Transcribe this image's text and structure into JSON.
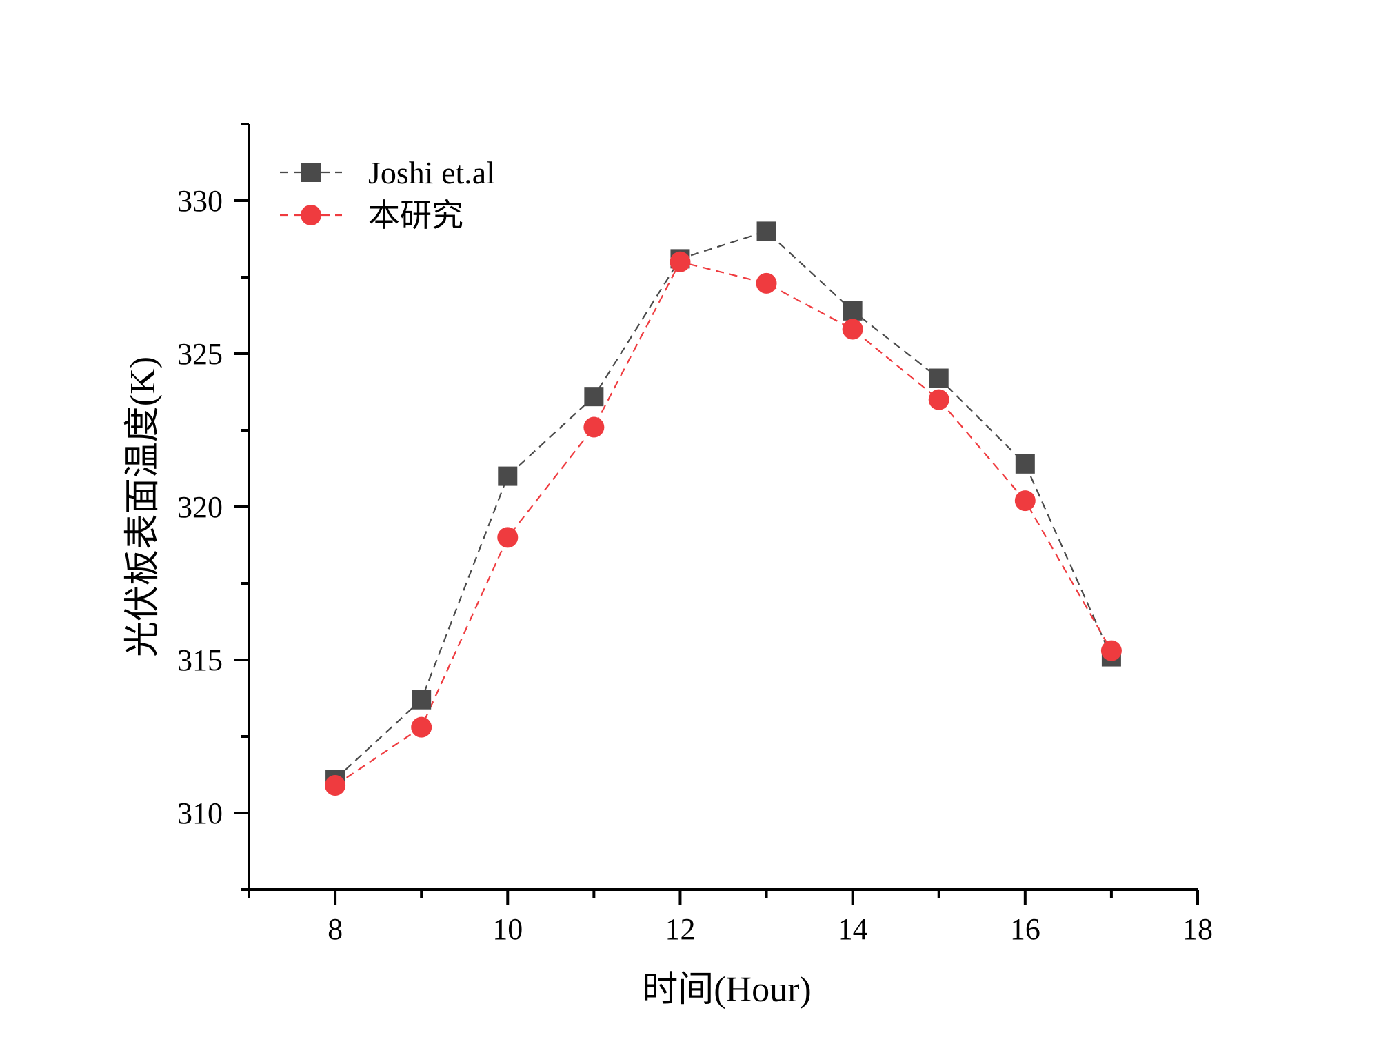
{
  "chart_data": {
    "type": "line",
    "xlabel": "时间(Hour)",
    "ylabel": "光伏板表面温度(K)",
    "xlim": [
      7,
      18
    ],
    "ylim": [
      307.5,
      332.5
    ],
    "x_ticks": [
      8,
      10,
      12,
      14,
      16,
      18
    ],
    "y_ticks": [
      310,
      315,
      320,
      325,
      330
    ],
    "grid": false,
    "legend_position": "top-left",
    "x": [
      8,
      9,
      10,
      11,
      12,
      13,
      14,
      15,
      16,
      17
    ],
    "series": [
      {
        "name": "Joshi et.al",
        "marker": "square",
        "line_style": "dashed",
        "color": "#4a4a4a",
        "values": [
          311.1,
          313.7,
          321.0,
          323.6,
          328.1,
          329.0,
          326.4,
          324.2,
          321.4,
          315.1
        ]
      },
      {
        "name": "本研究",
        "marker": "circle",
        "line_style": "dashed",
        "color": "#ef3b3f",
        "values": [
          310.9,
          312.8,
          319.0,
          322.6,
          328.0,
          327.3,
          325.8,
          323.5,
          320.2,
          315.3
        ]
      }
    ]
  }
}
